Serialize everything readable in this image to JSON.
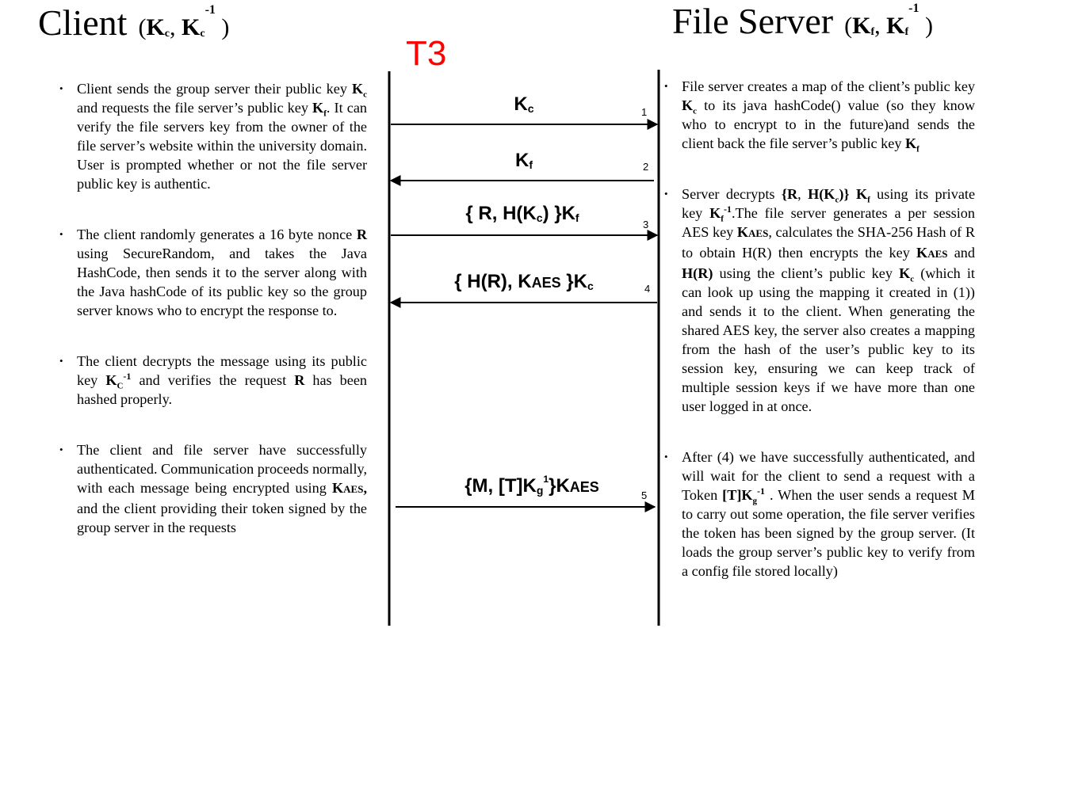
{
  "titles": {
    "client": "Client",
    "server": "File Server"
  },
  "t3": "T3",
  "messages": [
    {
      "num": "1",
      "label": "Kc",
      "direction": "to-server"
    },
    {
      "num": "2",
      "label": "Kf",
      "direction": "to-client"
    },
    {
      "num": "3",
      "label": "{ R, H(Kc) }Kf",
      "direction": "to-server"
    },
    {
      "num": "4",
      "label": "{ H(R), KAES }Kc",
      "direction": "to-client"
    },
    {
      "num": "5",
      "label": "{M, [T]Kg1}KAES",
      "direction": "to-server"
    }
  ],
  "client_notes": [
    "Client sends the group server their public key Kc and requests the file server’s public key Kf. It can verify the file servers key from the owner of the file server’s website within the university domain. User is prompted whether or not the file server public key is authentic.",
    "The client randomly generates a 16 byte nonce R using SecureRandom, and takes the Java HashCode, then sends it to the server along with the Java hashCode of its public key so the group server knows who to encrypt the response to.",
    "The client decrypts the message using its public key Kc-1 and verifies the request R has been hashed properly.",
    "The client and file server have successfully authenticated. Communication proceeds normally, with each message being encrypted using KAES, and the client providing their token signed by the group server in the requests"
  ],
  "server_notes": [
    "File server creates a map of the client’s public key Kc to its java hashCode() value (so they know who to encrypt to in the future)and sends the client back the file server’s public key Kf",
    "Server decrypts {R, H(Kc)} Kf using its private key Kf-1.The file server generates a per session AES key KAES, calculates the SHA-256 Hash of R to obtain H(R) then encrypts the key KAES and H(R) using the client’s public key Kc (which it can look up using the mapping it created in (1)) and sends it to the client. When generating the shared AES key, the server also creates a mapping from the hash of the user’s public key to its session key, ensuring we can keep track of multiple session keys if we have more than one user logged in at once.",
    "After (4) we have successfully authenticated, and will wait for the client to send a request with a Token [T]Kg-1 . When the user sends a request M to carry out some operation, the file server verifies the token has been signed by the group server. (It loads the group server’s public key to verify from a config file stored locally)"
  ],
  "colors": {
    "t3": "#ff0000",
    "lines": "#000000"
  }
}
